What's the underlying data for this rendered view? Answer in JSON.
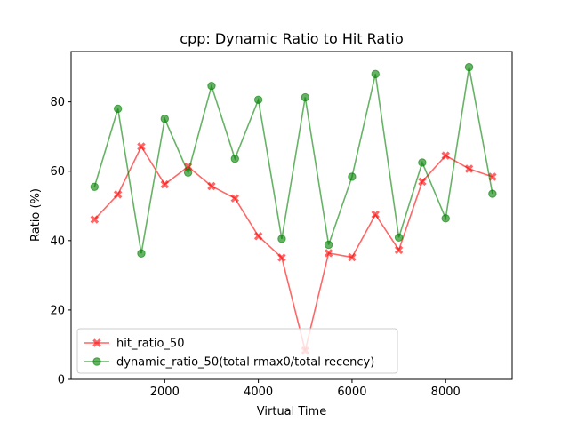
{
  "chart_data": {
    "type": "line",
    "title": "cpp: Dynamic Ratio to Hit Ratio",
    "xlabel": "Virtual Time",
    "ylabel": "Ratio (%)",
    "xlim": [
      0,
      9420
    ],
    "ylim": [
      0,
      94.5
    ],
    "xticks": [
      2000,
      4000,
      6000,
      8000
    ],
    "yticks": [
      0,
      20,
      40,
      60,
      80
    ],
    "x": [
      500,
      1000,
      1500,
      2000,
      2500,
      3000,
      3500,
      4000,
      4500,
      5000,
      5500,
      6000,
      6500,
      7000,
      7500,
      8000,
      8500,
      9000
    ],
    "series": [
      {
        "name": "hit_ratio_50",
        "color": "#ff0000",
        "marker": "x",
        "values": [
          46.1,
          53.3,
          67.1,
          56.2,
          61.3,
          55.7,
          52.2,
          41.3,
          35.1,
          8.3,
          36.4,
          35.2,
          47.5,
          37.3,
          57.0,
          64.5,
          60.7,
          58.4
        ]
      },
      {
        "name": "dynamic_ratio_50(total rmax0/total recency)",
        "color": "#008000",
        "marker": "o",
        "values": [
          55.5,
          78.0,
          36.3,
          75.1,
          59.6,
          84.6,
          63.6,
          80.6,
          40.5,
          81.3,
          38.8,
          58.4,
          88.0,
          40.9,
          62.5,
          46.4,
          90.0,
          53.5
        ]
      }
    ],
    "legend_position": "lower-left"
  }
}
